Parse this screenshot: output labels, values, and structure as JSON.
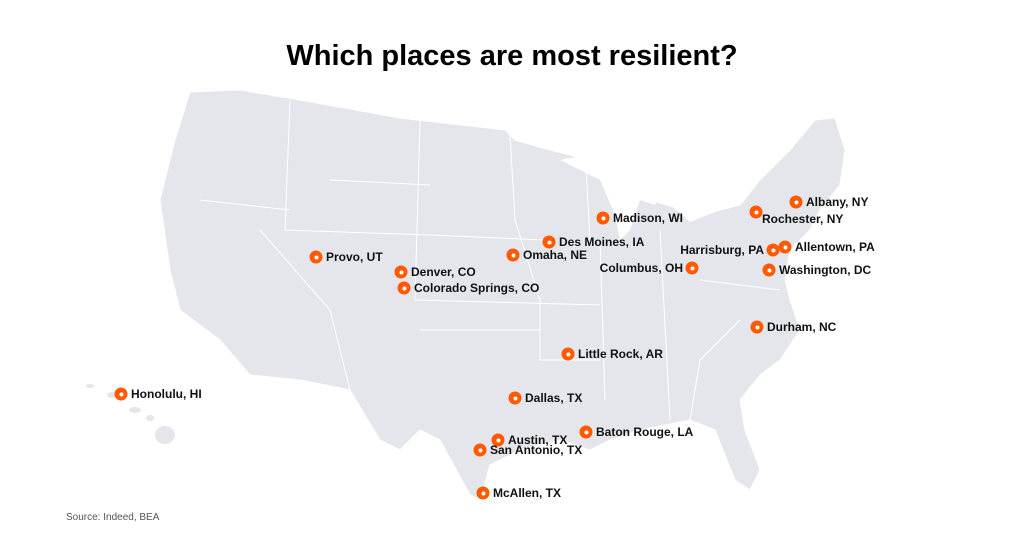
{
  "title": "Which places are most resilient?",
  "source": "Source: Indeed, BEA",
  "colors": {
    "marker": "#ff5a00",
    "land": "#e4e6ec",
    "borders": "#ffffff"
  },
  "marker_icon": "orange-ring-dot",
  "cities": [
    "Honolulu, HI",
    "Provo, UT",
    "Denver, CO",
    "Colorado Springs, CO",
    "Omaha, NE",
    "Des Moines, IA",
    "Madison, WI",
    "Little Rock, AR",
    "Dallas, TX",
    "Austin, TX",
    "San Antonio, TX",
    "McAllen, TX",
    "Baton Rouge, LA",
    "Columbus, OH",
    "Harrisburg, PA",
    "Allentown, PA",
    "Washington, DC",
    "Albany, NY",
    "Rochester, NY",
    "Durham, NC"
  ]
}
